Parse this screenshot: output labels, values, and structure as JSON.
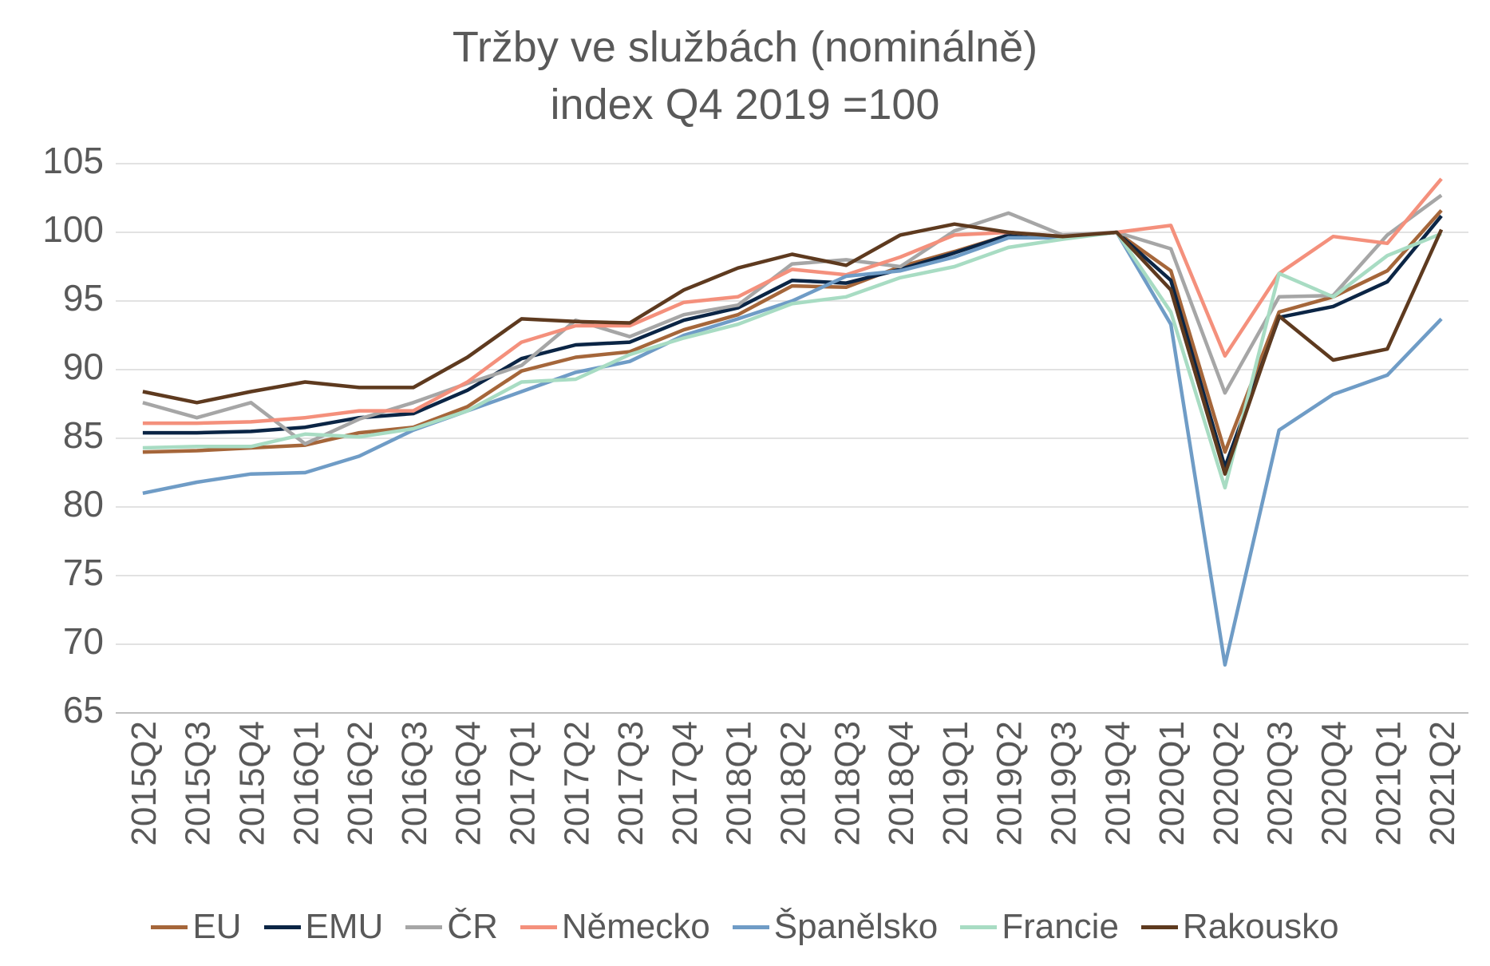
{
  "chart_data": {
    "type": "line",
    "title": "Tržby ve službách (nominálně)",
    "subtitle": "index Q4 2019 =100",
    "ylim": [
      65,
      105
    ],
    "yticks": [
      65,
      70,
      75,
      80,
      85,
      90,
      95,
      100,
      105
    ],
    "grid": true,
    "legend_position": "bottom",
    "categories": [
      "2015Q2",
      "2015Q3",
      "2015Q4",
      "2016Q1",
      "2016Q2",
      "2016Q3",
      "2016Q4",
      "2017Q1",
      "2017Q2",
      "2017Q3",
      "2017Q4",
      "2018Q1",
      "2018Q2",
      "2018Q3",
      "2018Q4",
      "2019Q1",
      "2019Q2",
      "2019Q3",
      "2019Q4",
      "2020Q1",
      "2020Q2",
      "2020Q3",
      "2020Q4",
      "2021Q1",
      "2021Q2"
    ],
    "series": [
      {
        "name": "EU",
        "color": "#A5663A",
        "values": [
          84.0,
          84.1,
          84.3,
          84.5,
          85.4,
          85.8,
          87.3,
          89.9,
          90.9,
          91.3,
          92.9,
          94.0,
          96.1,
          96.0,
          97.5,
          98.6,
          99.8,
          99.6,
          100.0,
          97.2,
          84.0,
          94.2,
          95.3,
          97.2,
          101.6
        ]
      },
      {
        "name": "EMU",
        "color": "#0B2545",
        "values": [
          85.4,
          85.4,
          85.5,
          85.8,
          86.5,
          86.8,
          88.5,
          90.8,
          91.8,
          92.0,
          93.6,
          94.5,
          96.5,
          96.3,
          97.3,
          98.5,
          99.8,
          99.6,
          100.0,
          96.5,
          82.9,
          93.8,
          94.6,
          96.4,
          101.2
        ]
      },
      {
        "name": "ČR",
        "color": "#A6A6A6",
        "values": [
          87.6,
          86.5,
          87.6,
          84.6,
          86.4,
          87.6,
          89.0,
          90.3,
          93.6,
          92.4,
          94.0,
          94.7,
          97.7,
          98.0,
          97.5,
          100.1,
          101.4,
          99.8,
          100.0,
          98.8,
          88.3,
          95.3,
          95.4,
          99.8,
          102.7
        ]
      },
      {
        "name": "Německo",
        "color": "#F4907C",
        "values": [
          86.1,
          86.1,
          86.2,
          86.5,
          87.0,
          87.0,
          89.1,
          92.0,
          93.2,
          93.2,
          94.9,
          95.3,
          97.3,
          96.9,
          98.2,
          99.8,
          100.0,
          99.7,
          100.0,
          100.5,
          91.0,
          97.0,
          99.7,
          99.2,
          103.9
        ]
      },
      {
        "name": "Španělsko",
        "color": "#6F9CC6",
        "values": [
          81.0,
          81.8,
          82.4,
          82.5,
          83.7,
          85.6,
          87.0,
          88.4,
          89.8,
          90.6,
          92.5,
          93.7,
          95.0,
          96.8,
          97.2,
          98.2,
          99.6,
          99.6,
          100.0,
          93.3,
          68.5,
          85.6,
          88.2,
          89.6,
          93.7
        ]
      },
      {
        "name": "Francie",
        "color": "#A8DCC3",
        "values": [
          84.3,
          84.4,
          84.4,
          85.3,
          85.1,
          85.7,
          87.0,
          89.1,
          89.3,
          91.1,
          92.3,
          93.3,
          94.8,
          95.3,
          96.7,
          97.5,
          98.9,
          99.5,
          100.0,
          94.2,
          81.4,
          97.0,
          95.3,
          98.3,
          99.9
        ]
      },
      {
        "name": "Rakousko",
        "color": "#5E3A1F",
        "values": [
          88.4,
          87.6,
          88.4,
          89.1,
          88.7,
          88.7,
          90.9,
          93.7,
          93.5,
          93.4,
          95.8,
          97.4,
          98.4,
          97.6,
          99.8,
          100.6,
          100.0,
          99.7,
          100.0,
          95.8,
          82.4,
          93.9,
          90.7,
          91.5,
          100.2
        ]
      }
    ]
  }
}
